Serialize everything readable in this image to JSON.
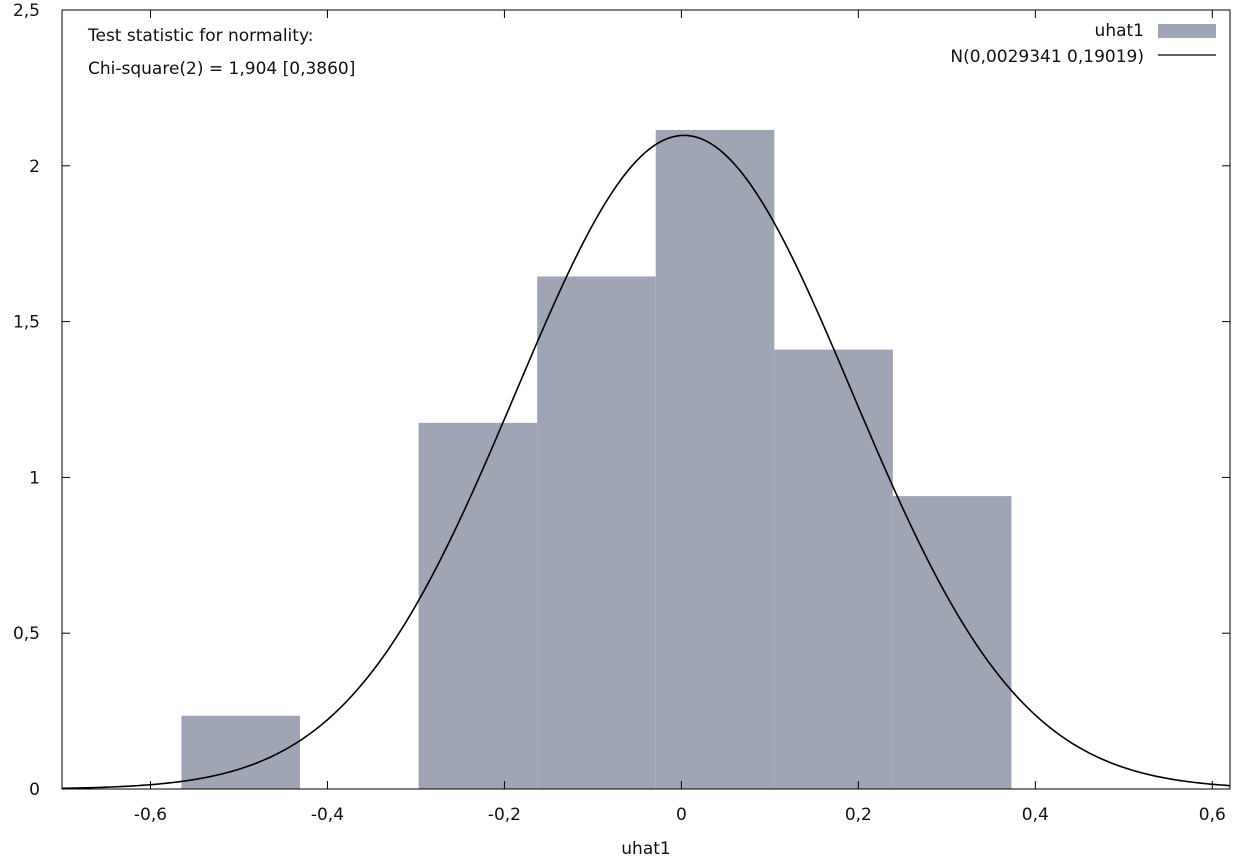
{
  "chart_data": {
    "type": "bar",
    "xlabel": "uhat1",
    "ylabel": "",
    "xlim": [
      -0.7,
      0.62
    ],
    "ylim": [
      0,
      2.5
    ],
    "xticks": [
      -0.6,
      -0.4,
      -0.2,
      0,
      0.2,
      0.4,
      0.6
    ],
    "xtick_labels": [
      "-0,6",
      "-0,4",
      "-0,2",
      "0",
      "0,2",
      "0,4",
      "0,6"
    ],
    "yticks": [
      0,
      0.5,
      1,
      1.5,
      2,
      2.5
    ],
    "ytick_labels": [
      "0",
      "0,5",
      "1",
      "1,5",
      "2",
      "2,5"
    ],
    "grid": false,
    "legend_position": "top-right",
    "annotation": {
      "line1": "Test statistic for normality:",
      "line2": "Chi-square(2) = 1,904 [0,3860]"
    },
    "series": [
      {
        "name": "uhat1",
        "kind": "histogram",
        "color": "#a0a5b5",
        "bins": [
          {
            "x0": -0.565,
            "x1": -0.431,
            "value": 0.235
          },
          {
            "x0": -0.431,
            "x1": -0.297,
            "value": 0
          },
          {
            "x0": -0.297,
            "x1": -0.163,
            "value": 1.175
          },
          {
            "x0": -0.163,
            "x1": -0.029,
            "value": 1.645
          },
          {
            "x0": -0.029,
            "x1": 0.105,
            "value": 2.115
          },
          {
            "x0": 0.105,
            "x1": 0.239,
            "value": 1.41
          },
          {
            "x0": 0.239,
            "x1": 0.373,
            "value": 0.94
          }
        ]
      },
      {
        "name": "N(0,0029341 0,19019)",
        "kind": "normal-curve",
        "color": "#000000",
        "mean": 0.0029341,
        "sd": 0.19019
      }
    ]
  }
}
